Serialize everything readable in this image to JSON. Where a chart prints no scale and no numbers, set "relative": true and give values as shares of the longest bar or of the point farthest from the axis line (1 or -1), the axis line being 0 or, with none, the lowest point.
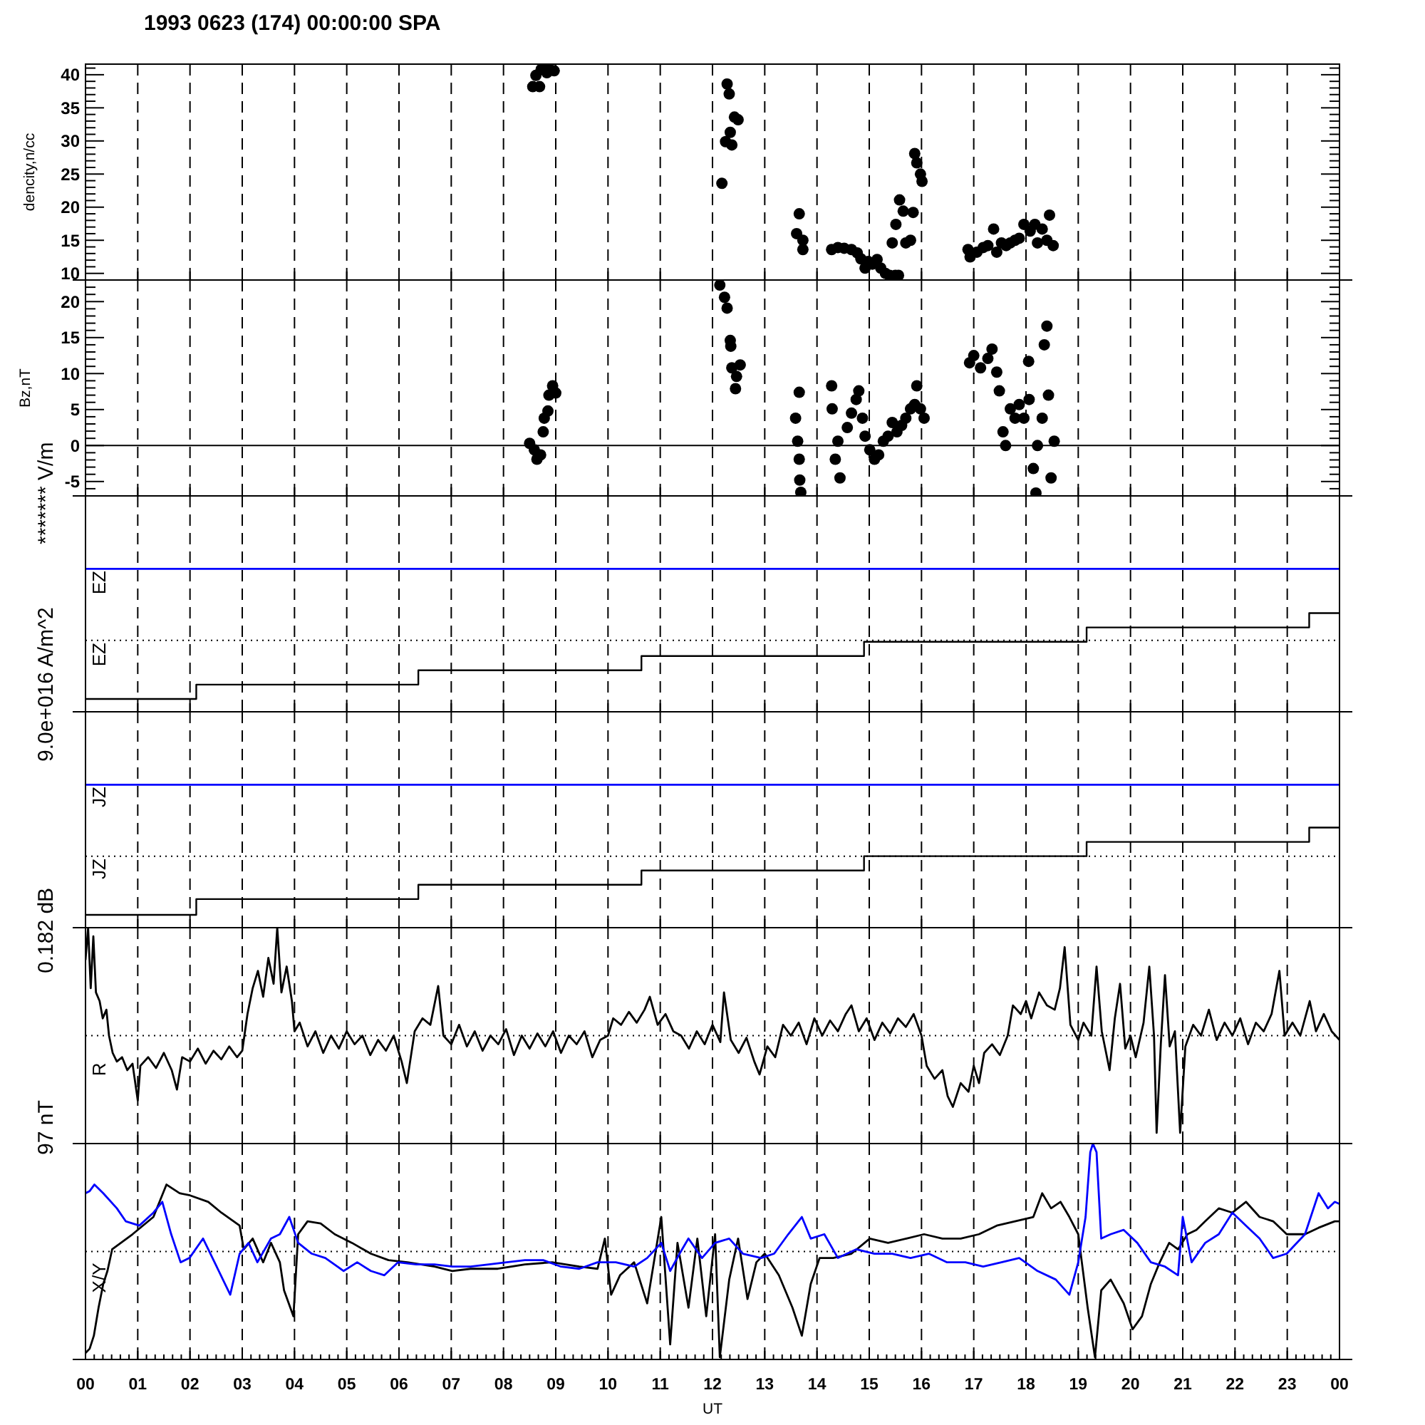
{
  "chart_data": [
    {
      "type": "scatter",
      "title": "1993 0623 (174) 00:00:00 SPA",
      "ylabel": "dencity,n/cc",
      "xlim": [
        0,
        24
      ],
      "xticks": [
        0,
        1,
        2,
        3,
        4,
        5,
        6,
        7,
        8,
        9,
        10,
        11,
        12,
        13,
        14,
        15,
        16,
        17,
        18,
        19,
        20,
        21,
        22,
        23,
        24
      ],
      "ylim": [
        9,
        41.6
      ],
      "yticks": [
        10,
        {
          "value": 11,
          "label": null
        },
        {
          "value": 12,
          "label": null
        },
        {
          "value": 13,
          "label": null
        },
        {
          "value": 14,
          "label": null
        },
        15,
        {
          "value": 16,
          "label": null
        },
        {
          "value": 17,
          "label": null
        },
        {
          "value": 18,
          "label": null
        },
        {
          "value": 19,
          "label": null
        },
        20,
        {
          "value": 21,
          "label": null
        },
        {
          "value": 22,
          "label": null
        },
        {
          "value": 23,
          "label": null
        },
        {
          "value": 24,
          "label": null
        },
        25,
        {
          "value": 26,
          "label": null
        },
        {
          "value": 27,
          "label": null
        },
        {
          "value": 28,
          "label": null
        },
        {
          "value": 29,
          "label": null
        },
        30,
        {
          "value": 31,
          "label": null
        },
        {
          "value": 32,
          "label": null
        },
        {
          "value": 33,
          "label": null
        },
        {
          "value": 34,
          "label": null
        },
        35,
        {
          "value": 36,
          "label": null
        },
        {
          "value": 37,
          "label": null
        },
        {
          "value": 38,
          "label": null
        },
        {
          "value": 39,
          "label": null
        },
        40,
        {
          "value": 41,
          "label": null
        }
      ],
      "grid": "x",
      "marker": "circle",
      "tick_labels": "y",
      "series": [
        {
          "color": "#000000",
          "x": [
            8.56,
            8.62,
            8.69,
            8.72,
            8.83,
            8.86,
            8.97,
            12.18,
            12.25,
            12.28,
            12.32,
            12.34,
            12.37,
            12.42,
            12.49,
            13.61,
            13.66,
            13.73,
            13.73,
            14.28,
            14.4,
            14.52,
            14.66,
            14.77,
            14.84,
            14.92,
            14.98,
            15.06,
            15.15,
            15.22,
            15.31,
            15.39,
            15.5,
            15.56,
            15.44,
            15.51,
            15.58,
            15.65,
            15.7,
            15.79,
            15.84,
            15.87,
            15.91,
            15.98,
            16.01,
            16.89,
            16.93,
            17.06,
            17.18,
            17.27,
            17.38,
            17.44,
            17.53,
            17.62,
            17.7,
            17.79,
            17.87,
            17.96,
            18.08,
            18.17,
            18.22,
            18.31,
            18.4,
            18.45,
            18.52
          ],
          "values": [
            38.2,
            39.9,
            38.2,
            40.8,
            40.3,
            41.0,
            40.6,
            23.6,
            29.9,
            38.6,
            37.1,
            31.3,
            29.4,
            33.6,
            33.2,
            16.0,
            19.0,
            15.0,
            13.6,
            13.6,
            13.9,
            13.8,
            13.6,
            13.1,
            12.2,
            10.8,
            11.8,
            11.4,
            12.1,
            10.8,
            10.0,
            9.7,
            9.7,
            9.7,
            14.6,
            17.4,
            21.1,
            19.4,
            14.6,
            15.0,
            19.2,
            28.1,
            26.7,
            25.0,
            23.9,
            13.6,
            12.5,
            13.2,
            13.9,
            14.2,
            16.7,
            13.2,
            14.6,
            14.2,
            14.6,
            15.0,
            15.3,
            17.4,
            16.4,
            17.4,
            14.6,
            16.7,
            15.0,
            18.8,
            14.2
          ]
        }
      ]
    },
    {
      "type": "scatter",
      "ylabel": "Bz,nT",
      "xlim": [
        0,
        24
      ],
      "xticks": [
        0,
        1,
        2,
        3,
        4,
        5,
        6,
        7,
        8,
        9,
        10,
        11,
        12,
        13,
        14,
        15,
        16,
        17,
        18,
        19,
        20,
        21,
        22,
        23,
        24
      ],
      "ylim": [
        -7,
        23
      ],
      "yticks": [
        {
          "value": -6,
          "label": null
        },
        -5,
        {
          "value": -4,
          "label": null
        },
        {
          "value": -3,
          "label": null
        },
        {
          "value": -2,
          "label": null
        },
        {
          "value": -1,
          "label": null
        },
        0,
        {
          "value": 1,
          "label": null
        },
        {
          "value": 2,
          "label": null
        },
        {
          "value": 3,
          "label": null
        },
        {
          "value": 4,
          "label": null
        },
        5,
        {
          "value": 6,
          "label": null
        },
        {
          "value": 7,
          "label": null
        },
        {
          "value": 8,
          "label": null
        },
        {
          "value": 9,
          "label": null
        },
        10,
        {
          "value": 11,
          "label": null
        },
        {
          "value": 12,
          "label": null
        },
        {
          "value": 13,
          "label": null
        },
        {
          "value": 14,
          "label": null
        },
        15,
        {
          "value": 16,
          "label": null
        },
        {
          "value": 17,
          "label": null
        },
        {
          "value": 18,
          "label": null
        },
        {
          "value": 19,
          "label": null
        },
        20,
        {
          "value": 21,
          "label": null
        },
        {
          "value": 22,
          "label": null
        }
      ],
      "grid": "x",
      "marker": "circle",
      "tick_labels": "y",
      "ref_lines": [
        {
          "axis": "y",
          "value": 0,
          "color": "#000000"
        }
      ],
      "series": [
        {
          "color": "#000000",
          "x": [
            8.5,
            8.59,
            8.64,
            8.71,
            8.76,
            8.78,
            8.85,
            8.87,
            8.94,
            9.0,
            12.14,
            12.23,
            12.28,
            12.34,
            12.35,
            12.37,
            12.44,
            12.46,
            12.53,
            13.59,
            13.63,
            13.66,
            13.66,
            13.67,
            13.69,
            14.28,
            14.29,
            14.35,
            14.4,
            14.44,
            14.58,
            14.66,
            14.75,
            14.8,
            14.87,
            14.92,
            15.01,
            15.1,
            15.18,
            15.27,
            15.36,
            15.44,
            15.53,
            15.62,
            15.7,
            15.79,
            15.87,
            15.91,
            15.98,
            16.05,
            16.92,
            17.0,
            17.13,
            17.27,
            17.35,
            17.44,
            17.49,
            17.56,
            17.61,
            17.7,
            17.79,
            17.87,
            17.96,
            18.05,
            18.06,
            18.14,
            18.19,
            18.22,
            18.31,
            18.35,
            18.4,
            18.43,
            18.48,
            18.54
          ],
          "values": [
            0.3,
            -0.6,
            -1.9,
            -1.3,
            1.9,
            3.8,
            4.8,
            7.0,
            8.3,
            7.3,
            22.3,
            20.6,
            19.1,
            14.6,
            13.8,
            10.8,
            7.9,
            9.6,
            11.2,
            3.8,
            0.6,
            7.4,
            -1.9,
            -4.8,
            -6.5,
            8.3,
            5.1,
            -1.9,
            0.6,
            -4.5,
            2.5,
            4.5,
            6.4,
            7.6,
            3.8,
            1.3,
            -0.6,
            -1.9,
            -1.3,
            0.6,
            1.3,
            3.2,
            1.9,
            2.8,
            3.8,
            5.1,
            5.7,
            8.3,
            5.1,
            3.8,
            11.5,
            12.5,
            10.8,
            12.1,
            13.4,
            10.2,
            7.6,
            1.9,
            0.0,
            5.1,
            3.8,
            5.7,
            3.8,
            11.7,
            6.4,
            -3.2,
            -6.6,
            0.0,
            3.8,
            14.0,
            16.6,
            7.0,
            -4.5,
            0.6
          ]
        }
      ]
    },
    {
      "type": "step",
      "relative": true,
      "ylabel": "******* V/m",
      "xlim": [
        0,
        24
      ],
      "xticks": [
        0,
        1,
        2,
        3,
        4,
        5,
        6,
        7,
        8,
        9,
        10,
        11,
        12,
        13,
        14,
        15,
        16,
        17,
        18,
        19,
        20,
        21,
        22,
        23,
        24
      ],
      "grid": "x",
      "tick_labels": false,
      "ref_lines": [
        {
          "axis": "y",
          "value": 0.5,
          "color": "#000000",
          "line_style": "dotted"
        }
      ],
      "series": [
        {
          "name": "EZ",
          "type": "line",
          "color": "#0000ff",
          "x": [
            0,
            24
          ],
          "values": [
            1,
            1
          ]
        },
        {
          "name": "EZ",
          "color": "#000000",
          "x": [
            0,
            2.12,
            6.37,
            10.64,
            14.9,
            19.16,
            23.42,
            24
          ],
          "values": [
            0.09,
            0.19,
            0.29,
            0.39,
            0.49,
            0.59,
            0.69,
            0.69
          ]
        }
      ]
    },
    {
      "type": "step",
      "relative": true,
      "ylabel": "9.0e+016 A/m^2",
      "xlim": [
        0,
        24
      ],
      "xticks": [
        0,
        1,
        2,
        3,
        4,
        5,
        6,
        7,
        8,
        9,
        10,
        11,
        12,
        13,
        14,
        15,
        16,
        17,
        18,
        19,
        20,
        21,
        22,
        23,
        24
      ],
      "grid": "x",
      "tick_labels": false,
      "ref_lines": [
        {
          "axis": "y",
          "value": 0.5,
          "color": "#000000",
          "line_style": "dotted"
        }
      ],
      "series": [
        {
          "name": "JZ",
          "type": "line",
          "color": "#0000ff",
          "x": [
            0,
            24
          ],
          "values": [
            1,
            1
          ]
        },
        {
          "name": "JZ",
          "color": "#000000",
          "x": [
            0,
            2.12,
            6.37,
            10.64,
            14.9,
            19.16,
            23.42,
            24
          ],
          "values": [
            0.09,
            0.2,
            0.3,
            0.4,
            0.5,
            0.6,
            0.7,
            0.7
          ]
        }
      ]
    },
    {
      "type": "line",
      "relative": true,
      "ylabel": "0.182 dB",
      "xlim": [
        0,
        24
      ],
      "xticks": [
        0,
        1,
        2,
        3,
        4,
        5,
        6,
        7,
        8,
        9,
        10,
        11,
        12,
        13,
        14,
        15,
        16,
        17,
        18,
        19,
        20,
        21,
        22,
        23,
        24
      ],
      "grid": "x",
      "tick_labels": false,
      "ref_lines": [
        {
          "axis": "y",
          "value": 0.5,
          "color": "#000000",
          "line_style": "dotted"
        }
      ],
      "series": [
        {
          "name": "R",
          "color": "#000000",
          "x": [
            0,
            0.05,
            0.1,
            0.15,
            0.2,
            0.27,
            0.33,
            0.4,
            0.45,
            0.52,
            0.6,
            0.7,
            0.8,
            0.9,
            1.0,
            1.05,
            1.2,
            1.35,
            1.5,
            1.65,
            1.75,
            1.85,
            2.0,
            2.15,
            2.3,
            2.45,
            2.6,
            2.75,
            2.9,
            3.0,
            3.1,
            3.2,
            3.3,
            3.4,
            3.5,
            3.6,
            3.67,
            3.75,
            3.85,
            3.95,
            4.0,
            4.1,
            4.25,
            4.4,
            4.55,
            4.7,
            4.85,
            5.0,
            5.15,
            5.3,
            5.45,
            5.6,
            5.75,
            5.9,
            6.05,
            6.15,
            6.3,
            6.45,
            6.6,
            6.75,
            6.85,
            7.0,
            7.15,
            7.3,
            7.45,
            7.6,
            7.75,
            7.9,
            8.05,
            8.2,
            8.35,
            8.5,
            8.65,
            8.8,
            8.95,
            9.1,
            9.25,
            9.4,
            9.55,
            9.7,
            9.85,
            10.0,
            10.1,
            10.25,
            10.4,
            10.55,
            10.7,
            10.8,
            10.95,
            11.1,
            11.25,
            11.4,
            11.55,
            11.7,
            11.85,
            12.0,
            12.15,
            12.22,
            12.35,
            12.5,
            12.65,
            12.8,
            12.9,
            13.05,
            13.2,
            13.35,
            13.5,
            13.65,
            13.8,
            13.95,
            14.1,
            14.25,
            14.4,
            14.55,
            14.66,
            14.8,
            14.95,
            15.1,
            15.25,
            15.4,
            15.55,
            15.7,
            15.85,
            16.0,
            16.1,
            16.25,
            16.4,
            16.5,
            16.6,
            16.75,
            16.9,
            17.0,
            17.1,
            17.2,
            17.35,
            17.5,
            17.65,
            17.75,
            17.9,
            18.0,
            18.1,
            18.25,
            18.4,
            18.55,
            18.65,
            18.74,
            18.85,
            19.0,
            19.1,
            19.25,
            19.35,
            19.45,
            19.6,
            19.7,
            19.8,
            19.9,
            20.0,
            20.1,
            20.25,
            20.36,
            20.45,
            20.5,
            20.58,
            20.66,
            20.75,
            20.85,
            20.95,
            21.05,
            21.2,
            21.35,
            21.5,
            21.65,
            21.8,
            21.95,
            22.1,
            22.25,
            22.4,
            22.55,
            22.7,
            22.85,
            22.95,
            23.1,
            23.25,
            23.43,
            23.55,
            23.7,
            23.85,
            24.0
          ],
          "values": [
            0.85,
            1,
            0.72,
            0.96,
            0.7,
            0.66,
            0.58,
            0.62,
            0.5,
            0.42,
            0.38,
            0.4,
            0.34,
            0.37,
            0.2,
            0.36,
            0.4,
            0.35,
            0.42,
            0.34,
            0.25,
            0.4,
            0.38,
            0.44,
            0.37,
            0.43,
            0.39,
            0.45,
            0.4,
            0.43,
            0.6,
            0.72,
            0.8,
            0.68,
            0.86,
            0.74,
            1,
            0.7,
            0.82,
            0.66,
            0.52,
            0.56,
            0.45,
            0.52,
            0.42,
            0.5,
            0.44,
            0.52,
            0.46,
            0.5,
            0.41,
            0.48,
            0.43,
            0.5,
            0.38,
            0.28,
            0.52,
            0.58,
            0.55,
            0.73,
            0.5,
            0.46,
            0.55,
            0.45,
            0.52,
            0.43,
            0.5,
            0.46,
            0.53,
            0.41,
            0.5,
            0.44,
            0.51,
            0.45,
            0.52,
            0.42,
            0.5,
            0.46,
            0.52,
            0.4,
            0.48,
            0.5,
            0.58,
            0.55,
            0.61,
            0.56,
            0.62,
            0.68,
            0.55,
            0.6,
            0.52,
            0.5,
            0.44,
            0.52,
            0.46,
            0.55,
            0.47,
            0.7,
            0.48,
            0.42,
            0.49,
            0.38,
            0.32,
            0.45,
            0.4,
            0.55,
            0.5,
            0.56,
            0.46,
            0.58,
            0.5,
            0.57,
            0.52,
            0.6,
            0.64,
            0.52,
            0.58,
            0.48,
            0.56,
            0.51,
            0.58,
            0.54,
            0.6,
            0.5,
            0.36,
            0.3,
            0.34,
            0.22,
            0.17,
            0.28,
            0.24,
            0.36,
            0.28,
            0.42,
            0.46,
            0.41,
            0.5,
            0.64,
            0.6,
            0.66,
            0.58,
            0.7,
            0.64,
            0.62,
            0.72,
            0.91,
            0.55,
            0.48,
            0.56,
            0.5,
            0.82,
            0.52,
            0.34,
            0.58,
            0.74,
            0.44,
            0.5,
            0.4,
            0.56,
            0.82,
            0.5,
            0.05,
            0.46,
            0.78,
            0.45,
            0.52,
            0.05,
            0.45,
            0.55,
            0.5,
            0.62,
            0.48,
            0.56,
            0.5,
            0.58,
            0.46,
            0.56,
            0.52,
            0.6,
            0.8,
            0.5,
            0.56,
            0.5,
            0.66,
            0.52,
            0.6,
            0.52,
            0.48
          ]
        }
      ]
    },
    {
      "type": "line",
      "relative": true,
      "ylabel": "97 nT",
      "xlabel": "UT",
      "annotations": [
        "X/Y"
      ],
      "xlim": [
        0,
        24
      ],
      "xticks": [
        {
          "value": 0,
          "label": "00"
        },
        {
          "value": 1,
          "label": "01"
        },
        {
          "value": 2,
          "label": "02"
        },
        {
          "value": 3,
          "label": "03"
        },
        {
          "value": 4,
          "label": "04"
        },
        {
          "value": 5,
          "label": "05"
        },
        {
          "value": 6,
          "label": "06"
        },
        {
          "value": 7,
          "label": "07"
        },
        {
          "value": 8,
          "label": "08"
        },
        {
          "value": 9,
          "label": "09"
        },
        {
          "value": 10,
          "label": "10"
        },
        {
          "value": 11,
          "label": "11"
        },
        {
          "value": 12,
          "label": "12"
        },
        {
          "value": 13,
          "label": "13"
        },
        {
          "value": 14,
          "label": "14"
        },
        {
          "value": 15,
          "label": "15"
        },
        {
          "value": 16,
          "label": "16"
        },
        {
          "value": 17,
          "label": "17"
        },
        {
          "value": 18,
          "label": "18"
        },
        {
          "value": 19,
          "label": "19"
        },
        {
          "value": 20,
          "label": "20"
        },
        {
          "value": 21,
          "label": "21"
        },
        {
          "value": 22,
          "label": "22"
        },
        {
          "value": 23,
          "label": "23"
        },
        {
          "value": 24,
          "label": "00"
        },
        {
          "value": 0.167,
          "label": null
        },
        {
          "value": 0.333,
          "label": null
        },
        {
          "value": 0.5,
          "label": null
        },
        {
          "value": 0.667,
          "label": null
        },
        {
          "value": 0.833,
          "label": null
        },
        {
          "value": 1.167,
          "label": null
        },
        {
          "value": 1.333,
          "label": null
        },
        {
          "value": 1.5,
          "label": null
        },
        {
          "value": 1.667,
          "label": null
        },
        {
          "value": 1.833,
          "label": null
        },
        {
          "value": 2.167,
          "label": null
        },
        {
          "value": 2.333,
          "label": null
        },
        {
          "value": 2.5,
          "label": null
        },
        {
          "value": 2.667,
          "label": null
        },
        {
          "value": 2.833,
          "label": null
        },
        {
          "value": 3.167,
          "label": null
        },
        {
          "value": 3.333,
          "label": null
        },
        {
          "value": 3.5,
          "label": null
        },
        {
          "value": 3.667,
          "label": null
        },
        {
          "value": 3.833,
          "label": null
        },
        {
          "value": 4.167,
          "label": null
        },
        {
          "value": 4.333,
          "label": null
        },
        {
          "value": 4.5,
          "label": null
        },
        {
          "value": 4.667,
          "label": null
        },
        {
          "value": 4.833,
          "label": null
        },
        {
          "value": 5.167,
          "label": null
        },
        {
          "value": 5.333,
          "label": null
        },
        {
          "value": 5.5,
          "label": null
        },
        {
          "value": 5.667,
          "label": null
        },
        {
          "value": 5.833,
          "label": null
        },
        {
          "value": 6.167,
          "label": null
        },
        {
          "value": 6.333,
          "label": null
        },
        {
          "value": 6.5,
          "label": null
        },
        {
          "value": 6.667,
          "label": null
        },
        {
          "value": 6.833,
          "label": null
        },
        {
          "value": 7.167,
          "label": null
        },
        {
          "value": 7.333,
          "label": null
        },
        {
          "value": 7.5,
          "label": null
        },
        {
          "value": 7.667,
          "label": null
        },
        {
          "value": 7.833,
          "label": null
        },
        {
          "value": 8.167,
          "label": null
        },
        {
          "value": 8.333,
          "label": null
        },
        {
          "value": 8.5,
          "label": null
        },
        {
          "value": 8.667,
          "label": null
        },
        {
          "value": 8.833,
          "label": null
        },
        {
          "value": 9.167,
          "label": null
        },
        {
          "value": 9.333,
          "label": null
        },
        {
          "value": 9.5,
          "label": null
        },
        {
          "value": 9.667,
          "label": null
        },
        {
          "value": 9.833,
          "label": null
        },
        {
          "value": 10.167,
          "label": null
        },
        {
          "value": 10.333,
          "label": null
        },
        {
          "value": 10.5,
          "label": null
        },
        {
          "value": 10.667,
          "label": null
        },
        {
          "value": 10.833,
          "label": null
        },
        {
          "value": 11.167,
          "label": null
        },
        {
          "value": 11.333,
          "label": null
        },
        {
          "value": 11.5,
          "label": null
        },
        {
          "value": 11.667,
          "label": null
        },
        {
          "value": 11.833,
          "label": null
        },
        {
          "value": 12.167,
          "label": null
        },
        {
          "value": 12.333,
          "label": null
        },
        {
          "value": 12.5,
          "label": null
        },
        {
          "value": 12.667,
          "label": null
        },
        {
          "value": 12.833,
          "label": null
        },
        {
          "value": 13.167,
          "label": null
        },
        {
          "value": 13.333,
          "label": null
        },
        {
          "value": 13.5,
          "label": null
        },
        {
          "value": 13.667,
          "label": null
        },
        {
          "value": 13.833,
          "label": null
        },
        {
          "value": 14.167,
          "label": null
        },
        {
          "value": 14.333,
          "label": null
        },
        {
          "value": 14.5,
          "label": null
        },
        {
          "value": 14.667,
          "label": null
        },
        {
          "value": 14.833,
          "label": null
        },
        {
          "value": 15.167,
          "label": null
        },
        {
          "value": 15.333,
          "label": null
        },
        {
          "value": 15.5,
          "label": null
        },
        {
          "value": 15.667,
          "label": null
        },
        {
          "value": 15.833,
          "label": null
        },
        {
          "value": 16.167,
          "label": null
        },
        {
          "value": 16.333,
          "label": null
        },
        {
          "value": 16.5,
          "label": null
        },
        {
          "value": 16.667,
          "label": null
        },
        {
          "value": 16.833,
          "label": null
        },
        {
          "value": 17.167,
          "label": null
        },
        {
          "value": 17.333,
          "label": null
        },
        {
          "value": 17.5,
          "label": null
        },
        {
          "value": 17.667,
          "label": null
        },
        {
          "value": 17.833,
          "label": null
        },
        {
          "value": 18.167,
          "label": null
        },
        {
          "value": 18.333,
          "label": null
        },
        {
          "value": 18.5,
          "label": null
        },
        {
          "value": 18.667,
          "label": null
        },
        {
          "value": 18.833,
          "label": null
        },
        {
          "value": 19.167,
          "label": null
        },
        {
          "value": 19.333,
          "label": null
        },
        {
          "value": 19.5,
          "label": null
        },
        {
          "value": 19.667,
          "label": null
        },
        {
          "value": 19.833,
          "label": null
        },
        {
          "value": 20.167,
          "label": null
        },
        {
          "value": 20.333,
          "label": null
        },
        {
          "value": 20.5,
          "label": null
        },
        {
          "value": 20.667,
          "label": null
        },
        {
          "value": 20.833,
          "label": null
        },
        {
          "value": 21.167,
          "label": null
        },
        {
          "value": 21.333,
          "label": null
        },
        {
          "value": 21.5,
          "label": null
        },
        {
          "value": 21.667,
          "label": null
        },
        {
          "value": 21.833,
          "label": null
        },
        {
          "value": 22.167,
          "label": null
        },
        {
          "value": 22.333,
          "label": null
        },
        {
          "value": 22.5,
          "label": null
        },
        {
          "value": 22.667,
          "label": null
        },
        {
          "value": 22.833,
          "label": null
        },
        {
          "value": 23.167,
          "label": null
        },
        {
          "value": 23.333,
          "label": null
        },
        {
          "value": 23.5,
          "label": null
        },
        {
          "value": 23.667,
          "label": null
        },
        {
          "value": 23.833,
          "label": null
        }
      ],
      "grid": "x",
      "ref_lines": [
        {
          "axis": "y",
          "value": 0.5,
          "color": "#000000",
          "line_style": "dotted"
        }
      ],
      "series": [
        {
          "color": "#000000",
          "x": [
            0,
            0.08,
            0.16,
            0.25,
            0.34,
            0.42,
            0.51,
            0.9,
            1.3,
            1.55,
            1.8,
            2.0,
            2.35,
            2.6,
            2.95,
            3.03,
            3.2,
            3.4,
            3.55,
            3.72,
            3.8,
            3.98,
            4.07,
            4.25,
            4.5,
            4.77,
            5.1,
            5.46,
            5.8,
            6.16,
            6.68,
            7.02,
            7.37,
            7.89,
            8.41,
            8.93,
            9.45,
            9.8,
            9.94,
            10.06,
            10.23,
            10.5,
            10.75,
            11.02,
            11.19,
            11.33,
            11.54,
            11.71,
            11.88,
            12.05,
            12.14,
            12.32,
            12.49,
            12.67,
            12.84,
            13.0,
            13.27,
            13.53,
            13.71,
            13.88,
            14.05,
            14.31,
            14.66,
            15.01,
            15.36,
            15.71,
            16.05,
            16.4,
            16.75,
            17.1,
            17.44,
            17.79,
            18.14,
            18.31,
            18.48,
            18.66,
            18.83,
            19.0,
            19.18,
            19.32,
            19.44,
            19.62,
            19.87,
            20.04,
            20.22,
            20.39,
            20.56,
            20.74,
            20.91,
            21.09,
            21.26,
            21.43,
            21.69,
            21.95,
            22.21,
            22.47,
            22.73,
            22.99,
            23.34,
            23.6,
            23.91,
            24
          ],
          "values": [
            0.03,
            0.05,
            0.11,
            0.24,
            0.35,
            0.41,
            0.51,
            0.58,
            0.66,
            0.81,
            0.77,
            0.76,
            0.73,
            0.68,
            0.62,
            0.51,
            0.56,
            0.45,
            0.54,
            0.45,
            0.32,
            0.2,
            0.58,
            0.64,
            0.63,
            0.58,
            0.54,
            0.49,
            0.46,
            0.45,
            0.43,
            0.41,
            0.42,
            0.42,
            0.44,
            0.45,
            0.43,
            0.42,
            0.56,
            0.3,
            0.39,
            0.45,
            0.26,
            0.66,
            0.07,
            0.54,
            0.24,
            0.56,
            0.2,
            0.58,
            0.01,
            0.37,
            0.56,
            0.28,
            0.45,
            0.49,
            0.39,
            0.24,
            0.11,
            0.35,
            0.47,
            0.47,
            0.49,
            0.56,
            0.54,
            0.56,
            0.58,
            0.56,
            0.56,
            0.58,
            0.62,
            0.64,
            0.66,
            0.77,
            0.7,
            0.73,
            0.66,
            0.58,
            0.24,
            0.01,
            0.32,
            0.37,
            0.26,
            0.14,
            0.2,
            0.35,
            0.45,
            0.54,
            0.51,
            0.58,
            0.6,
            0.64,
            0.7,
            0.68,
            0.73,
            0.66,
            0.64,
            0.58,
            0.58,
            0.61,
            0.64,
            0.64
          ]
        },
        {
          "color": "#0000ff",
          "x": [
            0,
            0.08,
            0.17,
            0.34,
            0.6,
            0.77,
            1.03,
            1.3,
            1.47,
            1.64,
            1.82,
            1.99,
            2.25,
            2.51,
            2.77,
            2.95,
            3.12,
            3.29,
            3.55,
            3.72,
            3.9,
            4.07,
            4.33,
            4.59,
            4.94,
            5.2,
            5.46,
            5.72,
            5.98,
            6.33,
            6.68,
            7.02,
            7.37,
            7.72,
            8.06,
            8.41,
            8.76,
            9.1,
            9.45,
            9.8,
            10.15,
            10.5,
            10.75,
            11.02,
            11.19,
            11.37,
            11.54,
            11.8,
            12.05,
            12.32,
            12.58,
            12.93,
            13.18,
            13.45,
            13.71,
            13.88,
            14.14,
            14.4,
            14.75,
            15.1,
            15.44,
            15.79,
            16.14,
            16.49,
            16.84,
            17.18,
            17.53,
            17.87,
            18.22,
            18.57,
            18.83,
            19.0,
            19.14,
            19.23,
            19.28,
            19.35,
            19.44,
            19.62,
            19.87,
            20.13,
            20.39,
            20.66,
            20.91,
            21.0,
            21.17,
            21.43,
            21.69,
            21.95,
            22.21,
            22.47,
            22.73,
            22.99,
            23.34,
            23.6,
            23.78,
            23.91,
            24
          ],
          "values": [
            0.77,
            0.78,
            0.81,
            0.77,
            0.7,
            0.64,
            0.62,
            0.68,
            0.73,
            0.58,
            0.45,
            0.47,
            0.56,
            0.43,
            0.3,
            0.49,
            0.54,
            0.45,
            0.56,
            0.58,
            0.66,
            0.54,
            0.49,
            0.47,
            0.41,
            0.45,
            0.41,
            0.39,
            0.45,
            0.44,
            0.44,
            0.43,
            0.43,
            0.44,
            0.45,
            0.46,
            0.46,
            0.43,
            0.42,
            0.45,
            0.45,
            0.43,
            0.47,
            0.54,
            0.41,
            0.49,
            0.56,
            0.47,
            0.54,
            0.56,
            0.49,
            0.47,
            0.49,
            0.58,
            0.66,
            0.56,
            0.58,
            0.47,
            0.51,
            0.49,
            0.49,
            0.47,
            0.49,
            0.45,
            0.45,
            0.43,
            0.45,
            0.47,
            0.41,
            0.37,
            0.3,
            0.45,
            0.66,
            0.96,
            1,
            0.96,
            0.56,
            0.58,
            0.6,
            0.54,
            0.45,
            0.43,
            0.39,
            0.66,
            0.45,
            0.54,
            0.58,
            0.68,
            0.62,
            0.56,
            0.47,
            0.49,
            0.58,
            0.77,
            0.7,
            0.73,
            0.72
          ]
        }
      ]
    }
  ]
}
